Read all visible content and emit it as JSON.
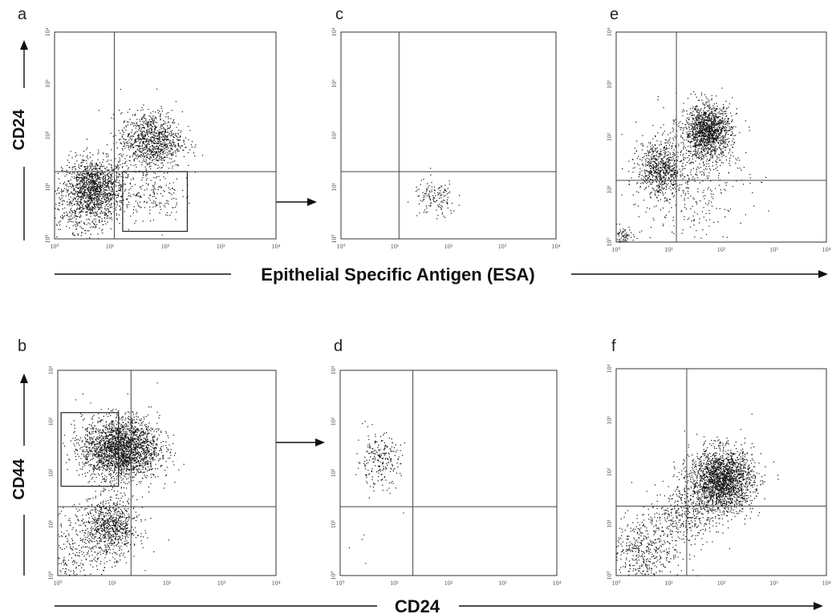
{
  "figure": {
    "labels": {
      "cd24_vertical": "CD24",
      "cd44_vertical": "CD44",
      "esa_horizontal": "Epithelial Specific Antigen (ESA)",
      "cd24_horizontal": "CD24"
    }
  },
  "chart_data": [
    {
      "panel": "a",
      "type": "scatter",
      "xlabel": "Epithelial Specific Antigen (ESA)",
      "ylabel": "CD24",
      "xscale": "log",
      "yscale": "log",
      "xlim": [
        1,
        10000
      ],
      "ylim": [
        1,
        10000
      ],
      "xticks": [
        "10⁰",
        "10¹",
        "10²",
        "10³",
        "10⁴"
      ],
      "yticks": [
        "10⁰",
        "10¹",
        "10²",
        "10³",
        "10⁴"
      ],
      "quadrant_x": 12,
      "quadrant_y": 20,
      "gate": {
        "x": [
          17,
          250
        ],
        "y": [
          1.4,
          20
        ]
      },
      "clusters": [
        {
          "cx": 5,
          "cy": 9,
          "sx": 0.28,
          "sy": 0.3,
          "n": 1500
        },
        {
          "cx": 55,
          "cy": 80,
          "sx": 0.28,
          "sy": 0.28,
          "n": 1000
        },
        {
          "cx": 60,
          "cy": 7,
          "sx": 0.25,
          "sy": 0.25,
          "n": 160
        },
        {
          "cx": 2,
          "cy": 2,
          "sx": 0.35,
          "sy": 0.35,
          "n": 180
        }
      ]
    },
    {
      "panel": "c",
      "type": "scatter",
      "xscale": "log",
      "yscale": "log",
      "xlim": [
        1,
        10000
      ],
      "ylim": [
        1,
        10000
      ],
      "xticks": [
        "10⁰",
        "10¹",
        "10²",
        "10³",
        "10⁴"
      ],
      "yticks": [
        "10⁰",
        "10¹",
        "10²",
        "10³",
        "10⁴"
      ],
      "quadrant_x": 12,
      "quadrant_y": 20,
      "clusters": [
        {
          "cx": 55,
          "cy": 6,
          "sx": 0.2,
          "sy": 0.18,
          "n": 140
        }
      ]
    },
    {
      "panel": "e",
      "type": "scatter",
      "xscale": "log",
      "yscale": "log",
      "xlim": [
        1,
        10000
      ],
      "ylim": [
        1,
        10000
      ],
      "xticks": [
        "10⁰",
        "10¹",
        "10²",
        "10³",
        "10⁴"
      ],
      "yticks": [
        "10⁰",
        "10¹",
        "10²",
        "10³",
        "10⁴"
      ],
      "quadrant_x": 14,
      "quadrant_y": 15,
      "clusters": [
        {
          "cx": 7,
          "cy": 25,
          "sx": 0.22,
          "sy": 0.25,
          "n": 700
        },
        {
          "cx": 55,
          "cy": 130,
          "sx": 0.22,
          "sy": 0.25,
          "n": 1400
        },
        {
          "cx": 25,
          "cy": 20,
          "sx": 0.55,
          "sy": 0.6,
          "n": 400
        },
        {
          "cx": 1.2,
          "cy": 1.2,
          "sx": 0.12,
          "sy": 0.12,
          "n": 120
        }
      ]
    },
    {
      "panel": "b",
      "type": "scatter",
      "xlabel": "CD24",
      "ylabel": "CD44",
      "xscale": "log",
      "yscale": "log",
      "xlim": [
        1,
        10000
      ],
      "ylim": [
        1,
        10000
      ],
      "xticks": [
        "10⁰",
        "10¹",
        "10²",
        "10³",
        "10⁴"
      ],
      "yticks": [
        "10⁰",
        "10¹",
        "10²",
        "10³",
        "10⁴"
      ],
      "quadrant_x": 22,
      "quadrant_y": 22,
      "gate": {
        "x": [
          1.15,
          13
        ],
        "y": [
          55,
          1500
        ]
      },
      "clusters": [
        {
          "cx": 14,
          "cy": 300,
          "sx": 0.35,
          "sy": 0.3,
          "n": 2400
        },
        {
          "cx": 9,
          "cy": 9,
          "sx": 0.25,
          "sy": 0.28,
          "n": 800
        },
        {
          "cx": 2,
          "cy": 2.5,
          "sx": 0.4,
          "sy": 0.5,
          "n": 400
        }
      ]
    },
    {
      "panel": "d",
      "type": "scatter",
      "xscale": "log",
      "yscale": "log",
      "xlim": [
        1,
        10000
      ],
      "ylim": [
        1,
        10000
      ],
      "xticks": [
        "10⁰",
        "10¹",
        "10²",
        "10³",
        "10⁴"
      ],
      "yticks": [
        "10⁰",
        "10¹",
        "10²",
        "10³",
        "10⁴"
      ],
      "quadrant_x": 22,
      "quadrant_y": 22,
      "clusters": [
        {
          "cx": 5,
          "cy": 180,
          "sx": 0.2,
          "sy": 0.25,
          "n": 230
        },
        {
          "cx": 3,
          "cy": 3,
          "sx": 0.5,
          "sy": 0.5,
          "n": 8
        }
      ]
    },
    {
      "panel": "f",
      "type": "scatter",
      "xscale": "log",
      "yscale": "log",
      "xlim": [
        1,
        10000
      ],
      "ylim": [
        1,
        10000
      ],
      "xticks": [
        "10⁰",
        "10¹",
        "10²",
        "10³",
        "10⁴"
      ],
      "yticks": [
        "10⁰",
        "10¹",
        "10²",
        "10³",
        "10⁴"
      ],
      "quadrant_x": 22,
      "quadrant_y": 22,
      "clusters": [
        {
          "cx": 100,
          "cy": 70,
          "sx": 0.3,
          "sy": 0.3,
          "n": 2200
        },
        {
          "cx": 3,
          "cy": 3,
          "sx": 0.35,
          "sy": 0.35,
          "n": 500
        },
        {
          "cx": 20,
          "cy": 15,
          "sx": 0.3,
          "sy": 0.3,
          "n": 350
        }
      ]
    }
  ]
}
